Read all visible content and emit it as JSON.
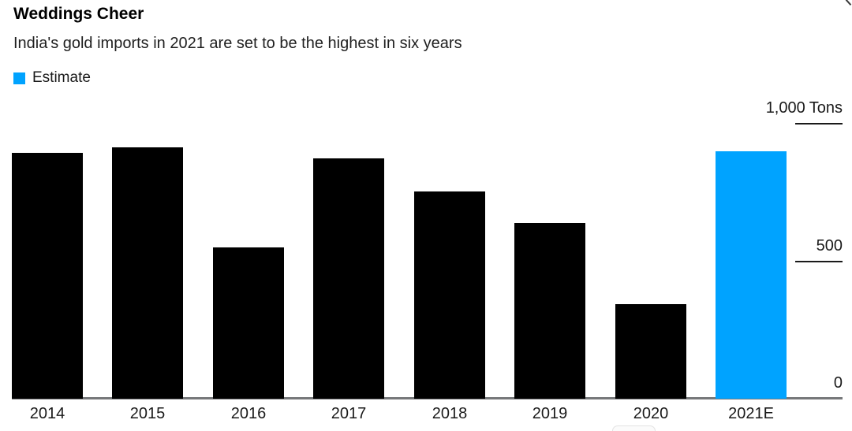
{
  "header": {
    "title": "Weddings Cheer",
    "subtitle": "India's gold imports in 2021 are set to be the highest in six years",
    "legend": [
      {
        "label": "Estimate",
        "color": "#00a3ff"
      }
    ]
  },
  "axis": {
    "unit": "Tons",
    "ticks": [
      {
        "label": "1,000",
        "value": 1000,
        "show_unit": true
      },
      {
        "label": "500",
        "value": 500,
        "show_unit": false
      },
      {
        "label": "0",
        "value": 0,
        "show_unit": false
      }
    ]
  },
  "chart_data": {
    "type": "bar",
    "title": "Weddings Cheer",
    "subtitle": "India's gold imports in 2021 are set to be the highest in six years",
    "categories": [
      "2014",
      "2015",
      "2016",
      "2017",
      "2018",
      "2019",
      "2020",
      "2021E"
    ],
    "values": [
      895,
      915,
      550,
      875,
      755,
      640,
      345,
      900
    ],
    "series_name": "India gold imports",
    "xlabel": "",
    "ylabel": "Tons",
    "ylim": [
      0,
      1000
    ],
    "grid": false,
    "legend_position": "top-left",
    "legend": [
      "Estimate"
    ],
    "bar_color": "#000000",
    "estimate_color": "#00a3ff",
    "estimate_indices": [
      7
    ]
  }
}
